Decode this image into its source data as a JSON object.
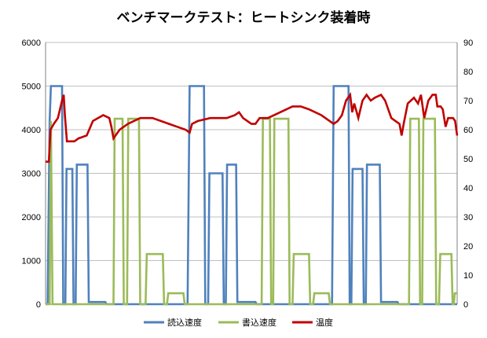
{
  "chart_data": {
    "type": "line",
    "title": "ベンチマークテスト：ヒートシンク装着時",
    "xlabel": "",
    "ylabel": "",
    "y_left": {
      "min": 0,
      "max": 6000,
      "ticks": [
        "0",
        "1000",
        "2000",
        "3000",
        "4000",
        "5000",
        "6000"
      ]
    },
    "y_right": {
      "min": 0,
      "max": 90,
      "ticks": [
        "0",
        "10",
        "20",
        "30",
        "40",
        "50",
        "60",
        "70",
        "80",
        "90"
      ]
    },
    "x_range": [
      0,
      100
    ],
    "grid": true,
    "legend_position": "bottom",
    "series": [
      {
        "name": "読込速度",
        "axis": "left",
        "color": "#4f81bd",
        "points": [
          [
            0,
            0
          ],
          [
            0.5,
            0
          ],
          [
            1,
            4200
          ],
          [
            1.3,
            5000
          ],
          [
            4,
            5000
          ],
          [
            4.3,
            0
          ],
          [
            4.8,
            0
          ],
          [
            5.1,
            3100
          ],
          [
            6.5,
            3100
          ],
          [
            6.8,
            0
          ],
          [
            7.3,
            0
          ],
          [
            7.6,
            3200
          ],
          [
            10.2,
            3200
          ],
          [
            10.5,
            50
          ],
          [
            14.5,
            50
          ],
          [
            14.8,
            0
          ],
          [
            34.5,
            0
          ],
          [
            35,
            5000
          ],
          [
            38.5,
            5000
          ],
          [
            38.8,
            0
          ],
          [
            39.5,
            0
          ],
          [
            39.8,
            3000
          ],
          [
            43,
            3000
          ],
          [
            43.3,
            0
          ],
          [
            43.8,
            0
          ],
          [
            44.1,
            3200
          ],
          [
            46.3,
            3200
          ],
          [
            46.6,
            50
          ],
          [
            51,
            50
          ],
          [
            51.3,
            0
          ],
          [
            69.6,
            0
          ],
          [
            70,
            5000
          ],
          [
            73.6,
            5000
          ],
          [
            73.9,
            0
          ],
          [
            74.3,
            0
          ],
          [
            74.6,
            3100
          ],
          [
            77,
            3100
          ],
          [
            77.3,
            0
          ],
          [
            77.8,
            0
          ],
          [
            78.1,
            3200
          ],
          [
            81.2,
            3200
          ],
          [
            81.5,
            50
          ],
          [
            85.5,
            50
          ],
          [
            85.8,
            0
          ],
          [
            100,
            0
          ]
        ]
      },
      {
        "name": "書込速度",
        "axis": "left",
        "color": "#9bbb59",
        "points": [
          [
            0,
            0
          ],
          [
            1,
            0
          ],
          [
            1.3,
            4200
          ],
          [
            1.7,
            0
          ],
          [
            16.5,
            0
          ],
          [
            16.8,
            4250
          ],
          [
            18.7,
            4250
          ],
          [
            19,
            0
          ],
          [
            19.8,
            0
          ],
          [
            20.1,
            4250
          ],
          [
            22.7,
            4250
          ],
          [
            23,
            0
          ],
          [
            24.3,
            0
          ],
          [
            24.6,
            1150
          ],
          [
            28.5,
            1150
          ],
          [
            28.8,
            0
          ],
          [
            29.5,
            0
          ],
          [
            29.8,
            250
          ],
          [
            33.5,
            250
          ],
          [
            33.8,
            0
          ],
          [
            52.5,
            0
          ],
          [
            52.8,
            4250
          ],
          [
            54.5,
            4250
          ],
          [
            54.8,
            0
          ],
          [
            55.3,
            0
          ],
          [
            55.6,
            4250
          ],
          [
            59,
            4250
          ],
          [
            59.3,
            0
          ],
          [
            60,
            0
          ],
          [
            60.3,
            1150
          ],
          [
            64,
            1150
          ],
          [
            64.3,
            0
          ],
          [
            65,
            0
          ],
          [
            65.3,
            250
          ],
          [
            68.8,
            250
          ],
          [
            69.1,
            0
          ],
          [
            88.3,
            0
          ],
          [
            88.6,
            4250
          ],
          [
            90.7,
            4250
          ],
          [
            91,
            0
          ],
          [
            91.5,
            0
          ],
          [
            91.8,
            4250
          ],
          [
            94.6,
            4250
          ],
          [
            94.9,
            0
          ],
          [
            95.6,
            0
          ],
          [
            95.9,
            1150
          ],
          [
            98.6,
            1150
          ],
          [
            98.9,
            0
          ],
          [
            99.2,
            0
          ],
          [
            99.4,
            250
          ],
          [
            100,
            250
          ]
        ]
      },
      {
        "name": "温度",
        "axis": "right",
        "color": "#c00000",
        "points": [
          [
            0,
            49
          ],
          [
            0.8,
            49
          ],
          [
            1.2,
            60
          ],
          [
            2,
            62
          ],
          [
            3,
            64
          ],
          [
            4,
            70
          ],
          [
            4.4,
            72
          ],
          [
            4.7,
            65
          ],
          [
            5.2,
            56
          ],
          [
            7,
            56
          ],
          [
            8,
            57
          ],
          [
            10,
            58
          ],
          [
            11.5,
            63
          ],
          [
            14,
            65
          ],
          [
            15.5,
            64
          ],
          [
            16,
            61
          ],
          [
            16.5,
            57
          ],
          [
            18,
            60
          ],
          [
            20,
            62
          ],
          [
            23,
            64
          ],
          [
            26,
            64
          ],
          [
            28,
            63
          ],
          [
            30,
            62
          ],
          [
            32,
            61
          ],
          [
            34,
            60
          ],
          [
            35,
            59
          ],
          [
            35.6,
            62
          ],
          [
            37,
            63
          ],
          [
            40,
            64
          ],
          [
            44,
            64
          ],
          [
            46,
            65
          ],
          [
            47,
            66
          ],
          [
            48,
            64
          ],
          [
            50,
            62
          ],
          [
            51,
            62
          ],
          [
            52,
            64
          ],
          [
            54,
            64
          ],
          [
            57,
            66
          ],
          [
            60,
            68
          ],
          [
            62,
            68
          ],
          [
            64,
            67
          ],
          [
            67,
            65
          ],
          [
            69,
            63
          ],
          [
            70,
            62
          ],
          [
            71,
            63
          ],
          [
            72,
            65
          ],
          [
            73,
            70
          ],
          [
            74,
            72
          ],
          [
            74.5,
            66
          ],
          [
            75,
            69
          ],
          [
            76,
            64
          ],
          [
            77,
            70
          ],
          [
            78,
            72
          ],
          [
            79,
            70
          ],
          [
            80,
            71
          ],
          [
            81.5,
            72
          ],
          [
            82.5,
            70
          ],
          [
            84,
            64
          ],
          [
            85,
            63
          ],
          [
            86,
            62
          ],
          [
            86.5,
            58
          ],
          [
            87,
            62
          ],
          [
            88,
            69
          ],
          [
            89.5,
            71
          ],
          [
            90.5,
            69
          ],
          [
            91.2,
            72
          ],
          [
            92,
            64
          ],
          [
            93,
            70
          ],
          [
            94,
            72
          ],
          [
            94.8,
            72
          ],
          [
            95.2,
            68
          ],
          [
            96,
            68
          ],
          [
            96.5,
            67
          ],
          [
            97.2,
            61
          ],
          [
            97.8,
            64
          ],
          [
            99,
            64
          ],
          [
            99.5,
            63
          ],
          [
            100,
            58
          ]
        ]
      }
    ]
  }
}
